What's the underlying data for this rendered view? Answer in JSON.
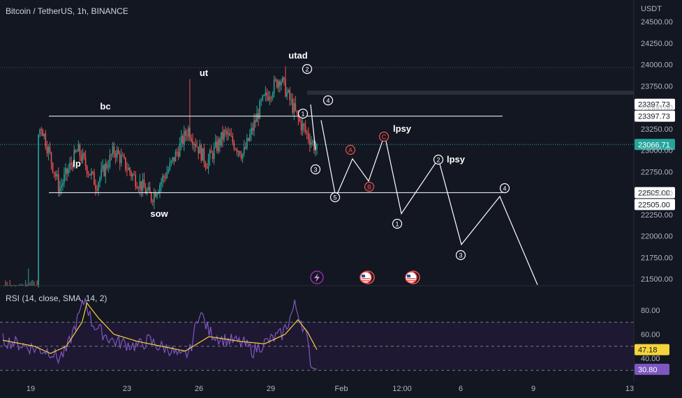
{
  "header": {
    "symbol_title": "Bitcoin / TetherUS, 1h, BINANCE",
    "currency": "USDT"
  },
  "colors": {
    "background": "#131722",
    "up": "#26a69a",
    "down": "#ef5350",
    "grid_text": "#b2b5be",
    "rsi_line": "#7e57c2",
    "rsi_sma": "#f5d33a",
    "annotation": "#ffffff",
    "last_price_bg": "#26a69a"
  },
  "chart_data": [
    {
      "type": "candlestick",
      "price_axis": {
        "ticks": [
          24500,
          24250,
          24000,
          23750,
          23500,
          23250,
          23000,
          22750,
          22500,
          22250,
          22000,
          21750,
          21500
        ],
        "labels": [
          "24500.00",
          "24250.00",
          "24000.00",
          "23750.00",
          "23500.00",
          "23250.00",
          "23000.00",
          "22750.00",
          "22500.00",
          "22250.00",
          "22000.00",
          "21750.00",
          "21500.00"
        ],
        "range": [
          21430,
          24640
        ]
      },
      "time_axis": {
        "labels": [
          "19",
          "23",
          "26",
          "29",
          "Feb",
          "12:00",
          "6",
          "9",
          "13"
        ]
      },
      "price_tags": [
        {
          "label": "23397.73",
          "style": "white"
        },
        {
          "label": "23397.73",
          "style": "white"
        },
        {
          "label": "23066.71",
          "style": "last"
        },
        {
          "label": "22505.00",
          "style": "white"
        },
        {
          "label": "22505.00",
          "style": "white"
        }
      ],
      "key_levels": {
        "range_top": 23397.73,
        "range_bottom": 22505.0,
        "last_price": 23066.71
      },
      "ohlc_path_key": [
        [
          21400,
          21400
        ],
        [
          22450,
          22600
        ],
        [
          23300,
          23400
        ],
        [
          22550,
          22650
        ],
        [
          23000,
          23050
        ],
        [
          22600,
          22700
        ],
        [
          23000,
          23100
        ],
        [
          22700,
          22800
        ],
        [
          22450,
          22550
        ],
        [
          22800,
          22900
        ],
        [
          23250,
          23350
        ],
        [
          22850,
          22950
        ],
        [
          23200,
          23280
        ],
        [
          22950,
          23000
        ],
        [
          23550,
          23650
        ],
        [
          23850,
          23950
        ],
        [
          23350,
          23450
        ],
        [
          23000,
          23100
        ]
      ],
      "annotations": {
        "labels": [
          "lp",
          "bc",
          "sow",
          "ut",
          "utad",
          "lpsy",
          "lpsy"
        ],
        "wave_1": [
          "1",
          "2",
          "3",
          "4",
          "5"
        ],
        "wave_2": [
          "A",
          "B",
          "C"
        ],
        "wave_3": [
          "1",
          "2",
          "3",
          "4"
        ]
      },
      "projection": [
        {
          "date": "Jan 30",
          "price": 23350
        },
        {
          "date": "Jan 31",
          "price": 22450
        },
        {
          "date": "Feb 1",
          "price": 22900
        },
        {
          "date": "Feb 1",
          "price": 22640
        },
        {
          "date": "Feb 1",
          "price": 23180
        },
        {
          "date": "Feb 2",
          "price": 22260
        },
        {
          "date": "Feb 4",
          "price": 22900
        },
        {
          "date": "Feb 6",
          "price": 21900
        },
        {
          "date": "Feb 7",
          "price": 22460
        },
        {
          "date": "Feb 8",
          "price": 21430
        }
      ]
    },
    {
      "type": "line",
      "title": "RSI (14, close, SMA, 14, 2)",
      "axis": {
        "ticks": [
          80,
          60,
          40
        ],
        "labels": [
          "80.00",
          "60.00",
          "40.00"
        ],
        "range": [
          28,
          92
        ],
        "bands": [
          70,
          50,
          30
        ]
      },
      "current": {
        "rsi": "30.80",
        "sma": "47.18"
      },
      "rsi_path_key": [
        [
          0,
          55
        ],
        [
          10,
          52
        ],
        [
          20,
          48
        ],
        [
          30,
          46
        ],
        [
          35,
          40
        ],
        [
          40,
          46
        ],
        [
          47,
          72
        ],
        [
          52,
          90
        ],
        [
          56,
          70
        ],
        [
          62,
          62
        ],
        [
          70,
          54
        ],
        [
          78,
          52
        ],
        [
          85,
          50
        ],
        [
          92,
          55
        ],
        [
          98,
          50
        ],
        [
          105,
          48
        ],
        [
          112,
          40
        ],
        [
          118,
          46
        ],
        [
          124,
          80
        ],
        [
          130,
          62
        ],
        [
          138,
          56
        ],
        [
          146,
          54
        ],
        [
          152,
          52
        ],
        [
          158,
          46
        ],
        [
          164,
          52
        ],
        [
          170,
          56
        ],
        [
          176,
          60
        ],
        [
          180,
          70
        ],
        [
          184,
          84
        ],
        [
          188,
          72
        ],
        [
          191,
          60
        ],
        [
          193,
          45
        ],
        [
          195,
          32
        ],
        [
          198,
          30.8
        ]
      ],
      "sma_path_key": [
        [
          0,
          55
        ],
        [
          20,
          50
        ],
        [
          30,
          44
        ],
        [
          40,
          50
        ],
        [
          50,
          70
        ],
        [
          53,
          86
        ],
        [
          60,
          74
        ],
        [
          70,
          60
        ],
        [
          85,
          54
        ],
        [
          100,
          50
        ],
        [
          115,
          46
        ],
        [
          130,
          58
        ],
        [
          150,
          54
        ],
        [
          165,
          52
        ],
        [
          178,
          60
        ],
        [
          186,
          72
        ],
        [
          192,
          62
        ],
        [
          198,
          47.18
        ]
      ]
    }
  ],
  "event_icons": [
    "flash-icon",
    "us-flag-icon",
    "us-flag-icon"
  ]
}
